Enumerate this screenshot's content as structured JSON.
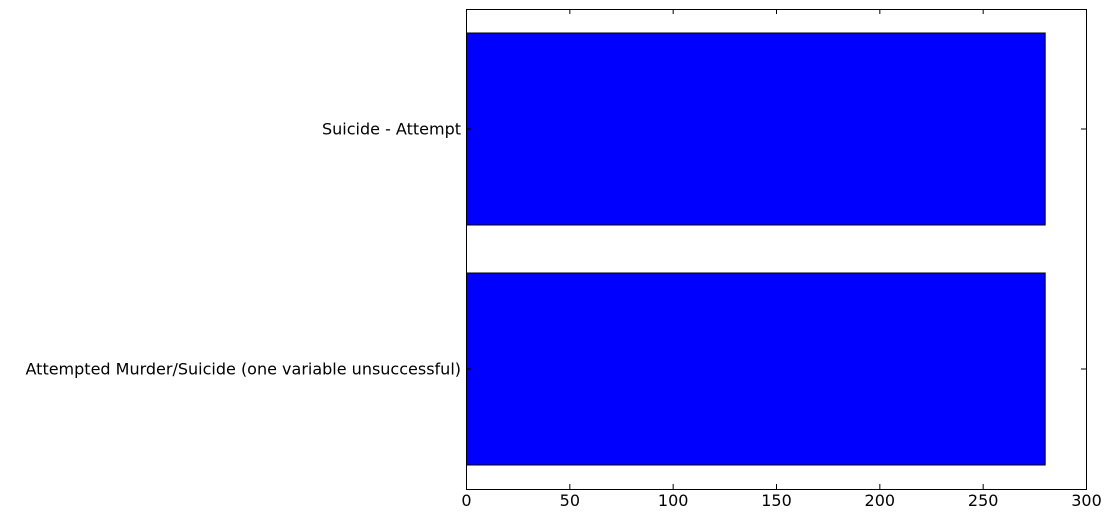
{
  "chart_data": {
    "type": "bar",
    "orientation": "horizontal",
    "categories": [
      "Suicide - Attempt",
      "Attempted Murder/Suicide (one variable unsuccessful)"
    ],
    "values": [
      280,
      280
    ],
    "xlim": [
      0,
      300
    ],
    "xticks": [
      0,
      50,
      100,
      150,
      200,
      250,
      300
    ],
    "xlabel": "",
    "ylabel": "",
    "title": "",
    "grid": false,
    "legend": "none",
    "bar_color": "#0000ff",
    "edge_color": "#000000"
  }
}
